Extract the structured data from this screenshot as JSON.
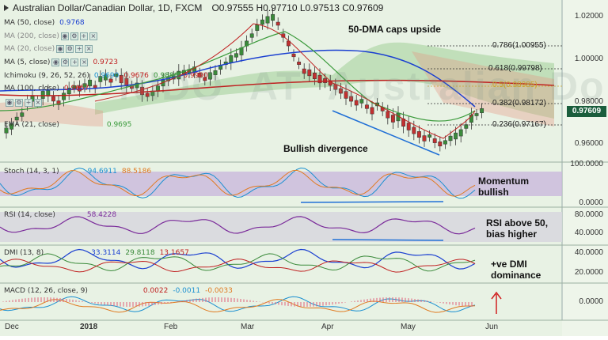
{
  "header": {
    "title": "Australian Dollar/Canadian Dollar, 1D, FXCM",
    "ohlc": "O0.97555 H0.97710 L0.97513 C0.97609"
  },
  "overlays": [
    {
      "label": "MA (50, close)",
      "value": "0.9768",
      "color": "#1a3fd1"
    },
    {
      "label": "MA (200, close)",
      "value": "",
      "color": "#888"
    },
    {
      "label": "MA (20, close)",
      "value": "",
      "color": "#888"
    },
    {
      "label": "MA (5, close)",
      "value": "0.9723",
      "color": "#c02020"
    },
    {
      "label": "Ichimoku (9, 26, 52, 26)",
      "values": [
        "0.9690",
        "0.9676",
        "0.9886",
        "0.9990"
      ],
      "colors": [
        "#1a8fd1",
        "#c02020",
        "#3a9a3a",
        "#c02020"
      ]
    },
    {
      "label": "MA (100, close)",
      "value": "0.9657",
      "color": "#c02020"
    },
    {
      "label": "EMA (21, close)",
      "value": "0.9695",
      "color": "#3a9a3a"
    }
  ],
  "annotations": {
    "caps": "50-DMA caps upside",
    "divergence": "Bullish divergence",
    "stoch_note": "Momentum\nbullish",
    "rsi_note": "RSI above 50,\nbias higher",
    "dmi_note": "+ve DMI\ndominance"
  },
  "fib_levels": [
    {
      "label": "0.786(1.00955)",
      "color": "#222"
    },
    {
      "label": "0.618(0.99798)",
      "color": "#222"
    },
    {
      "label": "0.5(0.98985)",
      "color": "#c9a227"
    },
    {
      "label": "0.382(0.98172)",
      "color": "#222"
    },
    {
      "label": "0.236(0.97167)",
      "color": "#222"
    }
  ],
  "price_axis": [
    "1.02000",
    "1.00000",
    "0.98000",
    "0.96000"
  ],
  "last_price": "0.97609",
  "stoch": {
    "label": "Stoch (14, 3, 1)",
    "k": "94.6911",
    "d": "88.5186",
    "axis": [
      "100.0000",
      "0.0000"
    ]
  },
  "rsi": {
    "label": "RSI (14, close)",
    "value": "58.4228",
    "axis": [
      "80.0000",
      "40.0000"
    ]
  },
  "dmi": {
    "label": "DMI (13, 8)",
    "plus": "33.3114",
    "minus": "29.8118",
    "adx": "13.1657",
    "axis": [
      "40.0000",
      "20.0000"
    ]
  },
  "macd": {
    "label": "MACD (12, 26, close, 9)",
    "hist": "0.0022",
    "macd": "-0.0011",
    "signal": "-0.0033",
    "axis": [
      "0.0000"
    ]
  },
  "time_axis": [
    {
      "label": "Dec",
      "bold": false
    },
    {
      "label": "2018",
      "bold": true
    },
    {
      "label": "Feb",
      "bold": false
    },
    {
      "label": "Mar",
      "bold": false
    },
    {
      "label": "Apr",
      "bold": false
    },
    {
      "label": "May",
      "bold": false
    },
    {
      "label": "Jun",
      "bold": false
    }
  ],
  "colors": {
    "up_candle": "#3a8a3a",
    "down_candle": "#c23030",
    "ma50": "#1a3fd1",
    "ma100": "#c02020",
    "ema21": "#3a9a3a",
    "cloud_bull": "rgba(120,190,110,0.35)",
    "cloud_bear": "rgba(230,150,130,0.35)",
    "stoch_bg": "#c9b8dc",
    "rsi_bg": "#d8d8de",
    "trendline": "#1f6fd6"
  }
}
